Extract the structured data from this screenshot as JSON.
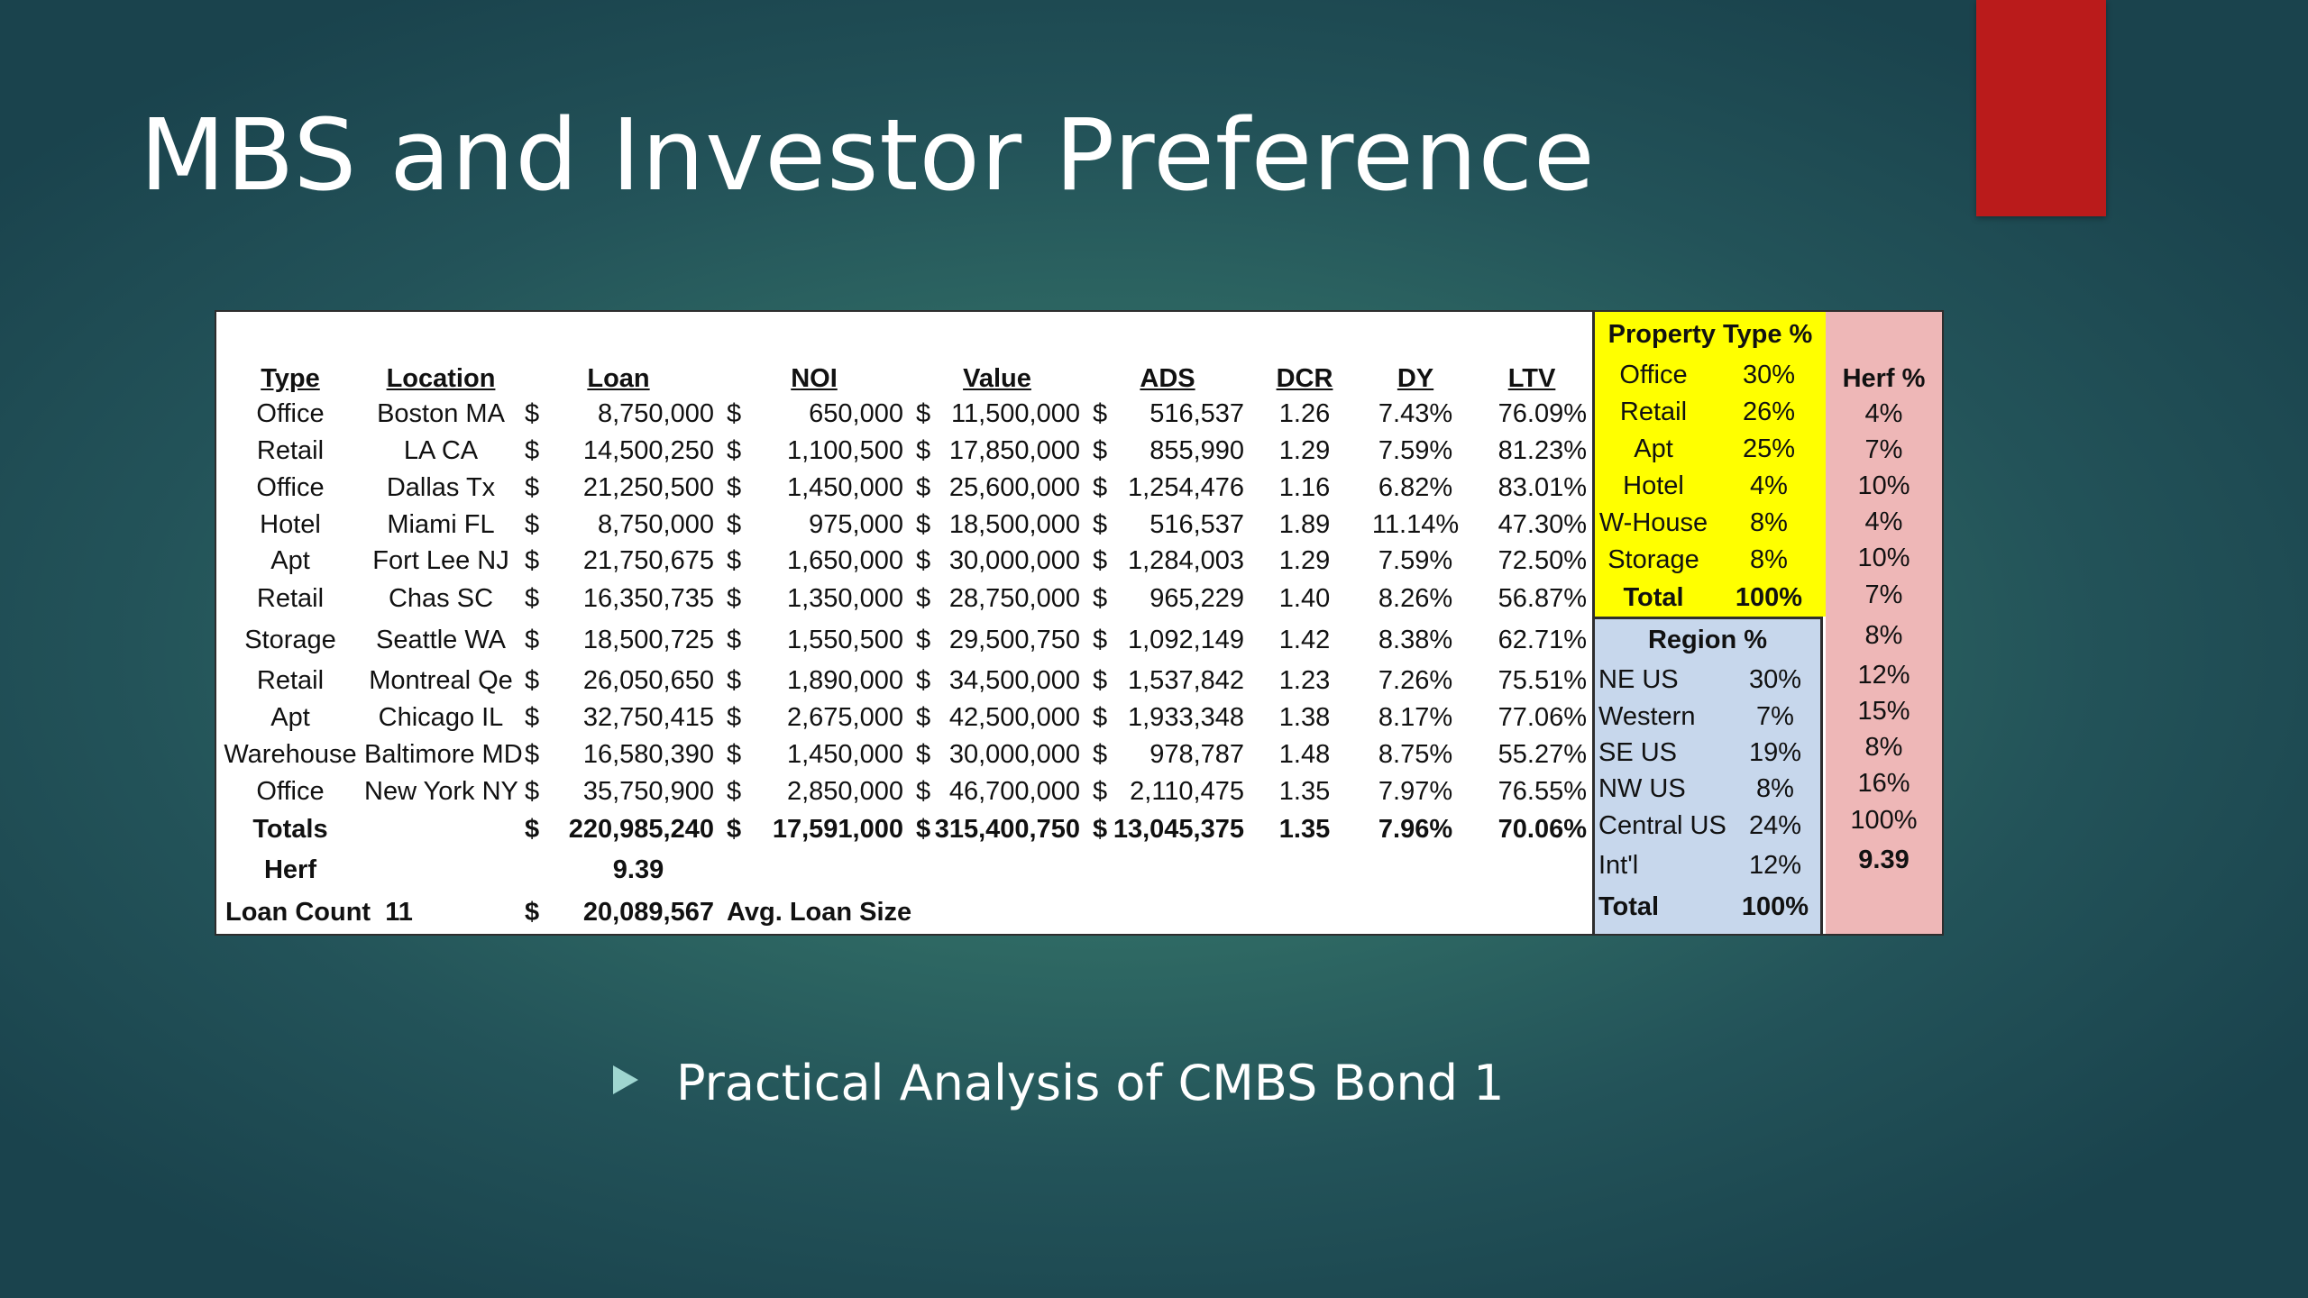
{
  "slide": {
    "title": "MBS and Investor Preference",
    "bullet": "Practical Analysis of CMBS Bond 1",
    "colors": {
      "accent_bar": "#ba1b1b",
      "property_panel": "#ffff00",
      "region_panel": "#c7d7ec",
      "herf_panel": "#eeb7b7"
    }
  },
  "table": {
    "headers": {
      "type": "Type",
      "location": "Location",
      "loan": "Loan",
      "noi": "NOI",
      "value": "Value",
      "ads": "ADS",
      "dcr": "DCR",
      "dy": "DY",
      "ltv": "LTV"
    },
    "rows": [
      {
        "type": "Office",
        "location": "Boston MA",
        "loan": "8,750,000",
        "noi": "650,000",
        "value": "11,500,000",
        "ads": "516,537",
        "dcr": "1.26",
        "dy": "7.43%",
        "ltv": "76.09%"
      },
      {
        "type": "Retail",
        "location": "LA CA",
        "loan": "14,500,250",
        "noi": "1,100,500",
        "value": "17,850,000",
        "ads": "855,990",
        "dcr": "1.29",
        "dy": "7.59%",
        "ltv": "81.23%"
      },
      {
        "type": "Office",
        "location": "Dallas Tx",
        "loan": "21,250,500",
        "noi": "1,450,000",
        "value": "25,600,000",
        "ads": "1,254,476",
        "dcr": "1.16",
        "dy": "6.82%",
        "ltv": "83.01%"
      },
      {
        "type": "Hotel",
        "location": "Miami FL",
        "loan": "8,750,000",
        "noi": "975,000",
        "value": "18,500,000",
        "ads": "516,537",
        "dcr": "1.89",
        "dy": "11.14%",
        "ltv": "47.30%"
      },
      {
        "type": "Apt",
        "location": "Fort Lee NJ",
        "loan": "21,750,675",
        "noi": "1,650,000",
        "value": "30,000,000",
        "ads": "1,284,003",
        "dcr": "1.29",
        "dy": "7.59%",
        "ltv": "72.50%"
      },
      {
        "type": "Retail",
        "location": "Chas SC",
        "loan": "16,350,735",
        "noi": "1,350,000",
        "value": "28,750,000",
        "ads": "965,229",
        "dcr": "1.40",
        "dy": "8.26%",
        "ltv": "56.87%"
      },
      {
        "type": "Storage",
        "location": "Seattle WA",
        "loan": "18,500,725",
        "noi": "1,550,500",
        "value": "29,500,750",
        "ads": "1,092,149",
        "dcr": "1.42",
        "dy": "8.38%",
        "ltv": "62.71%"
      },
      {
        "type": "Retail",
        "location": "Montreal Qe",
        "loan": "26,050,650",
        "noi": "1,890,000",
        "value": "34,500,000",
        "ads": "1,537,842",
        "dcr": "1.23",
        "dy": "7.26%",
        "ltv": "75.51%"
      },
      {
        "type": "Apt",
        "location": "Chicago IL",
        "loan": "32,750,415",
        "noi": "2,675,000",
        "value": "42,500,000",
        "ads": "1,933,348",
        "dcr": "1.38",
        "dy": "8.17%",
        "ltv": "77.06%"
      },
      {
        "type": "Warehouse",
        "location": "Baltimore MD",
        "loan": "16,580,390",
        "noi": "1,450,000",
        "value": "30,000,000",
        "ads": "978,787",
        "dcr": "1.48",
        "dy": "8.75%",
        "ltv": "55.27%"
      },
      {
        "type": "Office",
        "location": "New York NY",
        "loan": "35,750,900",
        "noi": "2,850,000",
        "value": "46,700,000",
        "ads": "2,110,475",
        "dcr": "1.35",
        "dy": "7.97%",
        "ltv": "76.55%"
      }
    ],
    "totals": {
      "label": "Totals",
      "loan": "220,985,240",
      "noi": "17,591,000",
      "value": "315,400,750",
      "ads": "13,045,375",
      "dcr": "1.35",
      "dy": "7.96%",
      "ltv": "70.06%"
    },
    "herf": {
      "label": "Herf",
      "value": "9.39"
    },
    "loan_count": {
      "label": "Loan Count",
      "count": "11",
      "avg_value": "20,089,567",
      "avg_label": "Avg. Loan Size"
    },
    "currency": "$"
  },
  "property_type": {
    "title": "Property Type %",
    "rows": [
      {
        "name": "Office",
        "pct": "30%"
      },
      {
        "name": "Retail",
        "pct": "26%"
      },
      {
        "name": "Apt",
        "pct": "25%"
      },
      {
        "name": "Hotel",
        "pct": "4%"
      },
      {
        "name": "W-House",
        "pct": "8%"
      },
      {
        "name": "Storage",
        "pct": "8%"
      }
    ],
    "total": {
      "name": "Total",
      "pct": "100%"
    }
  },
  "region": {
    "title": "Region %",
    "rows": [
      {
        "name": "NE US",
        "pct": "30%"
      },
      {
        "name": "Western",
        "pct": "7%"
      },
      {
        "name": "SE US",
        "pct": "19%"
      },
      {
        "name": "NW US",
        "pct": "8%"
      },
      {
        "name": "Central US",
        "pct": "24%"
      },
      {
        "name": "Int'l",
        "pct": "12%"
      }
    ],
    "total": {
      "name": "Total",
      "pct": "100%"
    }
  },
  "herf_column": {
    "title": "Herf %",
    "values": [
      "4%",
      "7%",
      "10%",
      "4%",
      "10%",
      "7%",
      "8%",
      "12%",
      "15%",
      "8%",
      "16%",
      "100%"
    ],
    "total": "9.39"
  }
}
